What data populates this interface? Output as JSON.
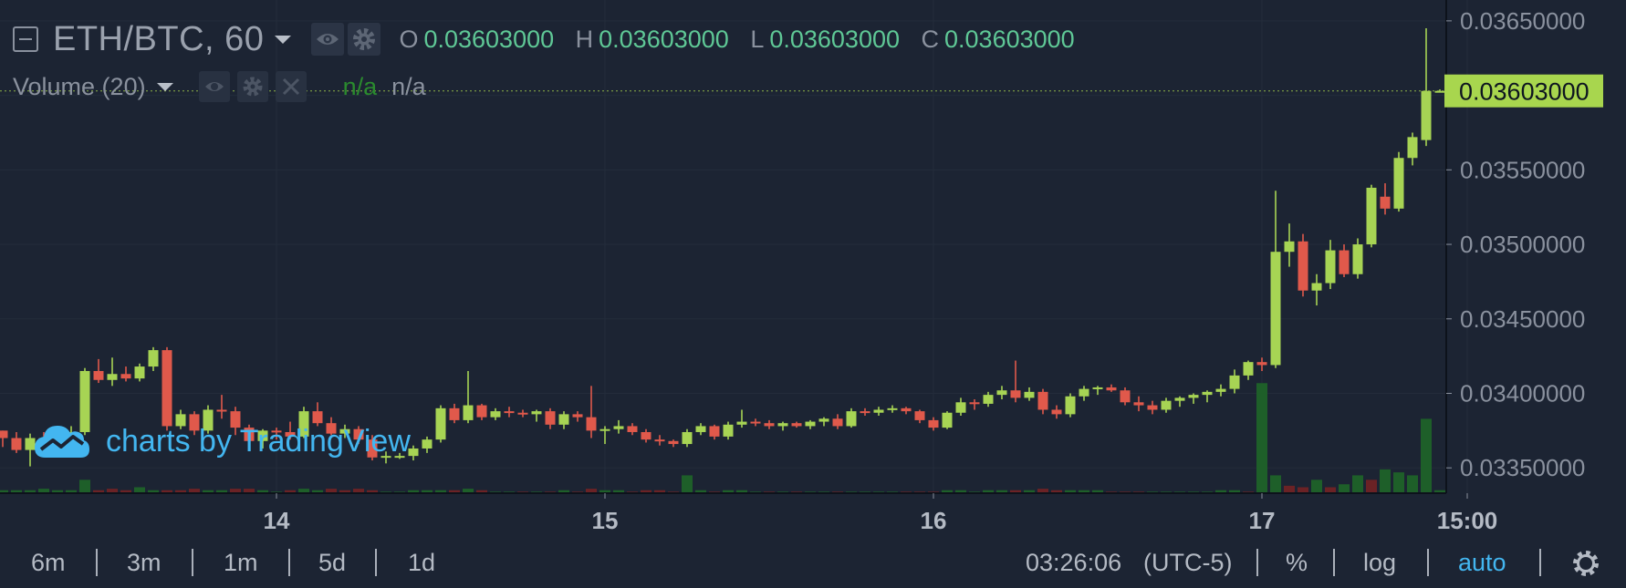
{
  "legend": {
    "symbol": "ETH/BTC, 60",
    "ohlc": [
      {
        "key": "O",
        "value": "0.03603000"
      },
      {
        "key": "H",
        "value": "0.03603000"
      },
      {
        "key": "L",
        "value": "0.03603000"
      },
      {
        "key": "C",
        "value": "0.03603000"
      }
    ]
  },
  "volume_legend": {
    "title": "Volume (20)",
    "value_1": "n/a",
    "value_2": "n/a"
  },
  "watermark": "charts by TradingView",
  "bottom_bar": {
    "ranges": [
      "6m",
      "3m",
      "1m",
      "5d",
      "1d"
    ],
    "time": "03:26:06",
    "timezone": "(UTC-5)",
    "percent": "%",
    "log": "log",
    "auto": "auto"
  },
  "colors": {
    "background": "#1c2433",
    "up": "#a7d454",
    "down": "#e0594b",
    "volume_up": "#1e5f29",
    "volume_down": "#6b2225",
    "price_tag": "#a8d64e",
    "accent": "#43b6f0",
    "ohlc_value": "#5fc896"
  },
  "chart_data": {
    "type": "candlestick",
    "symbol": "ETH/BTC",
    "interval": "60",
    "y_ticks": [
      "0.03350000",
      "0.03400000",
      "0.03450000",
      "0.03500000",
      "0.03550000",
      "0.03600000",
      "0.03650000"
    ],
    "last_price": "0.03603000",
    "y_range": [
      0.03333,
      0.03664
    ],
    "x_labels": [
      {
        "i": 20,
        "label": "14"
      },
      {
        "i": 44,
        "label": "15"
      },
      {
        "i": 68,
        "label": "16"
      },
      {
        "i": 92,
        "label": "17"
      },
      {
        "i": 107,
        "label": "15:00"
      }
    ],
    "candles": [
      [
        0.03375,
        0.03375,
        0.03364,
        0.0337
      ],
      [
        0.0337,
        0.03374,
        0.0336,
        0.03362
      ],
      [
        0.03362,
        0.03373,
        0.03351,
        0.0337
      ],
      [
        0.0337,
        0.03374,
        0.03364,
        0.03366
      ],
      [
        0.03366,
        0.03375,
        0.03362,
        0.03372
      ],
      [
        0.03372,
        0.03378,
        0.03368,
        0.03374
      ],
      [
        0.03374,
        0.03417,
        0.03372,
        0.03415
      ],
      [
        0.03415,
        0.03423,
        0.03407,
        0.03409
      ],
      [
        0.03409,
        0.03424,
        0.03405,
        0.03413
      ],
      [
        0.03413,
        0.03418,
        0.03408,
        0.0341
      ],
      [
        0.0341,
        0.0342,
        0.03408,
        0.03418
      ],
      [
        0.03418,
        0.03431,
        0.03415,
        0.03429
      ],
      [
        0.03429,
        0.03431,
        0.03375,
        0.03378
      ],
      [
        0.03378,
        0.03389,
        0.03376,
        0.03386
      ],
      [
        0.03386,
        0.03388,
        0.03372,
        0.03375
      ],
      [
        0.03375,
        0.03392,
        0.03373,
        0.03389
      ],
      [
        0.03389,
        0.03399,
        0.03383,
        0.03388
      ],
      [
        0.03388,
        0.03391,
        0.03372,
        0.03377
      ],
      [
        0.03377,
        0.03379,
        0.03366,
        0.03368
      ],
      [
        0.03368,
        0.03376,
        0.03363,
        0.03375
      ],
      [
        0.03375,
        0.03377,
        0.03369,
        0.03374
      ],
      [
        0.03374,
        0.03381,
        0.03369,
        0.03371
      ],
      [
        0.03371,
        0.03391,
        0.0337,
        0.03388
      ],
      [
        0.03388,
        0.03394,
        0.03378,
        0.0338
      ],
      [
        0.0338,
        0.03384,
        0.03372,
        0.03373
      ],
      [
        0.03373,
        0.03379,
        0.0337,
        0.03376
      ],
      [
        0.03376,
        0.03378,
        0.03366,
        0.03369
      ],
      [
        0.03369,
        0.03372,
        0.03355,
        0.03357
      ],
      [
        0.03357,
        0.03361,
        0.03353,
        0.03358
      ],
      [
        0.03358,
        0.0336,
        0.03356,
        0.03358
      ],
      [
        0.03358,
        0.03365,
        0.03355,
        0.03363
      ],
      [
        0.03363,
        0.03371,
        0.0336,
        0.03369
      ],
      [
        0.03369,
        0.03392,
        0.03367,
        0.0339
      ],
      [
        0.0339,
        0.03393,
        0.0338,
        0.03382
      ],
      [
        0.03382,
        0.03415,
        0.0338,
        0.03392
      ],
      [
        0.03392,
        0.03393,
        0.03382,
        0.03384
      ],
      [
        0.03384,
        0.0339,
        0.03382,
        0.03388
      ],
      [
        0.03388,
        0.03391,
        0.03384,
        0.03387
      ],
      [
        0.03387,
        0.03389,
        0.03384,
        0.03386
      ],
      [
        0.03386,
        0.03389,
        0.03381,
        0.03388
      ],
      [
        0.03388,
        0.0339,
        0.03376,
        0.03379
      ],
      [
        0.03379,
        0.03388,
        0.03376,
        0.03386
      ],
      [
        0.03386,
        0.03388,
        0.03381,
        0.03384
      ],
      [
        0.03384,
        0.03405,
        0.0337,
        0.03375
      ],
      [
        0.03375,
        0.03378,
        0.03366,
        0.03376
      ],
      [
        0.03376,
        0.03382,
        0.03373,
        0.03378
      ],
      [
        0.03378,
        0.0338,
        0.03372,
        0.03374
      ],
      [
        0.03374,
        0.03376,
        0.03367,
        0.03369
      ],
      [
        0.03369,
        0.03372,
        0.03365,
        0.03368
      ],
      [
        0.03368,
        0.03369,
        0.03364,
        0.03366
      ],
      [
        0.03366,
        0.03376,
        0.03364,
        0.03374
      ],
      [
        0.03374,
        0.0338,
        0.03372,
        0.03378
      ],
      [
        0.03378,
        0.03379,
        0.03369,
        0.03371
      ],
      [
        0.03371,
        0.03381,
        0.03369,
        0.03379
      ],
      [
        0.03379,
        0.03389,
        0.03377,
        0.03381
      ],
      [
        0.03381,
        0.03383,
        0.03378,
        0.0338
      ],
      [
        0.0338,
        0.03382,
        0.03376,
        0.03378
      ],
      [
        0.03378,
        0.03381,
        0.03375,
        0.0338
      ],
      [
        0.0338,
        0.03381,
        0.03377,
        0.03378
      ],
      [
        0.03378,
        0.03382,
        0.03376,
        0.03381
      ],
      [
        0.03381,
        0.03384,
        0.03378,
        0.03383
      ],
      [
        0.03383,
        0.03386,
        0.03376,
        0.03378
      ],
      [
        0.03378,
        0.0339,
        0.03377,
        0.03388
      ],
      [
        0.03388,
        0.0339,
        0.03385,
        0.03387
      ],
      [
        0.03387,
        0.03391,
        0.03385,
        0.03389
      ],
      [
        0.03389,
        0.03392,
        0.03387,
        0.0339
      ],
      [
        0.0339,
        0.03391,
        0.03386,
        0.03388
      ],
      [
        0.03388,
        0.03389,
        0.0338,
        0.03382
      ],
      [
        0.03382,
        0.03384,
        0.03375,
        0.03377
      ],
      [
        0.03377,
        0.03388,
        0.03376,
        0.03387
      ],
      [
        0.03387,
        0.03397,
        0.03385,
        0.03394
      ],
      [
        0.03394,
        0.03396,
        0.03389,
        0.03393
      ],
      [
        0.03393,
        0.03401,
        0.03391,
        0.03399
      ],
      [
        0.03399,
        0.03405,
        0.03396,
        0.03402
      ],
      [
        0.03402,
        0.03422,
        0.03394,
        0.03397
      ],
      [
        0.03397,
        0.03404,
        0.03395,
        0.03401
      ],
      [
        0.03401,
        0.03403,
        0.03386,
        0.03389
      ],
      [
        0.03389,
        0.03392,
        0.03383,
        0.03386
      ],
      [
        0.03386,
        0.034,
        0.03384,
        0.03398
      ],
      [
        0.03398,
        0.03405,
        0.03395,
        0.03403
      ],
      [
        0.03403,
        0.03405,
        0.03399,
        0.03404
      ],
      [
        0.03404,
        0.03406,
        0.03401,
        0.03402
      ],
      [
        0.03402,
        0.03404,
        0.03392,
        0.03394
      ],
      [
        0.03394,
        0.03398,
        0.03388,
        0.03392
      ],
      [
        0.03392,
        0.03395,
        0.03386,
        0.03389
      ],
      [
        0.03389,
        0.03397,
        0.03387,
        0.03395
      ],
      [
        0.03395,
        0.03398,
        0.03391,
        0.03397
      ],
      [
        0.03397,
        0.034,
        0.03393,
        0.03399
      ],
      [
        0.03399,
        0.03402,
        0.03394,
        0.03401
      ],
      [
        0.03401,
        0.03406,
        0.03398,
        0.03403
      ],
      [
        0.03403,
        0.03416,
        0.034,
        0.03412
      ],
      [
        0.03412,
        0.03422,
        0.03409,
        0.03421
      ],
      [
        0.03421,
        0.03424,
        0.03415,
        0.03419
      ],
      [
        0.03419,
        0.03536,
        0.03417,
        0.03495
      ],
      [
        0.03495,
        0.03514,
        0.03485,
        0.03502
      ],
      [
        0.03502,
        0.03507,
        0.03465,
        0.03469
      ],
      [
        0.03469,
        0.0348,
        0.03459,
        0.03474
      ],
      [
        0.03474,
        0.03503,
        0.0347,
        0.03496
      ],
      [
        0.03496,
        0.035,
        0.03478,
        0.0348
      ],
      [
        0.0348,
        0.03504,
        0.03477,
        0.035
      ],
      [
        0.035,
        0.0354,
        0.03498,
        0.03538
      ],
      [
        0.03532,
        0.03541,
        0.0352,
        0.03524
      ],
      [
        0.03524,
        0.03562,
        0.03522,
        0.03558
      ],
      [
        0.03558,
        0.03575,
        0.03553,
        0.03572
      ],
      [
        0.0357,
        0.03645,
        0.03566,
        0.03603
      ],
      [
        0.03603,
        0.03604,
        0.03602,
        0.03603
      ]
    ],
    "volume_max": 76,
    "volume": [
      [
        2,
        1
      ],
      [
        2,
        1
      ],
      [
        2,
        1
      ],
      [
        3,
        1
      ],
      [
        2,
        1
      ],
      [
        2,
        1
      ],
      [
        9,
        1
      ],
      [
        2,
        0
      ],
      [
        3,
        0
      ],
      [
        2,
        0
      ],
      [
        4,
        1
      ],
      [
        2,
        1
      ],
      [
        2,
        0
      ],
      [
        2,
        0
      ],
      [
        3,
        0
      ],
      [
        2,
        1
      ],
      [
        2,
        1
      ],
      [
        3,
        0
      ],
      [
        3,
        0
      ],
      [
        2,
        1
      ],
      [
        1,
        1
      ],
      [
        2,
        0
      ],
      [
        3,
        1
      ],
      [
        2,
        1
      ],
      [
        3,
        0
      ],
      [
        2,
        0
      ],
      [
        3,
        0
      ],
      [
        2,
        0
      ],
      [
        1,
        1
      ],
      [
        1,
        1
      ],
      [
        2,
        1
      ],
      [
        2,
        1
      ],
      [
        2,
        1
      ],
      [
        2,
        0
      ],
      [
        3,
        1
      ],
      [
        2,
        0
      ],
      [
        1,
        1
      ],
      [
        1,
        1
      ],
      [
        1,
        0
      ],
      [
        1,
        1
      ],
      [
        1,
        0
      ],
      [
        2,
        1
      ],
      [
        1,
        0
      ],
      [
        3,
        0
      ],
      [
        2,
        1
      ],
      [
        2,
        1
      ],
      [
        1,
        0
      ],
      [
        2,
        0
      ],
      [
        2,
        0
      ],
      [
        1,
        0
      ],
      [
        12,
        1
      ],
      [
        2,
        1
      ],
      [
        1,
        0
      ],
      [
        2,
        1
      ],
      [
        2,
        1
      ],
      [
        1,
        1
      ],
      [
        1,
        0
      ],
      [
        1,
        1
      ],
      [
        1,
        0
      ],
      [
        1,
        1
      ],
      [
        1,
        1
      ],
      [
        1,
        0
      ],
      [
        1,
        1
      ],
      [
        1,
        1
      ],
      [
        1,
        1
      ],
      [
        1,
        1
      ],
      [
        1,
        0
      ],
      [
        1,
        0
      ],
      [
        1,
        0
      ],
      [
        2,
        1
      ],
      [
        2,
        1
      ],
      [
        1,
        1
      ],
      [
        2,
        1
      ],
      [
        2,
        1
      ],
      [
        2,
        0
      ],
      [
        2,
        1
      ],
      [
        3,
        0
      ],
      [
        2,
        0
      ],
      [
        2,
        1
      ],
      [
        2,
        1
      ],
      [
        2,
        1
      ],
      [
        1,
        0
      ],
      [
        1,
        0
      ],
      [
        1,
        0
      ],
      [
        1,
        1
      ],
      [
        1,
        1
      ],
      [
        1,
        1
      ],
      [
        1,
        1
      ],
      [
        1,
        1
      ],
      [
        2,
        1
      ],
      [
        2,
        1
      ],
      [
        1,
        0
      ],
      [
        74,
        1
      ],
      [
        12,
        1
      ],
      [
        5,
        0
      ],
      [
        4,
        0
      ],
      [
        9,
        1
      ],
      [
        4,
        0
      ],
      [
        6,
        1
      ],
      [
        12,
        1
      ],
      [
        9,
        0
      ],
      [
        16,
        1
      ],
      [
        14,
        1
      ],
      [
        12,
        1
      ],
      [
        50,
        1
      ],
      [
        2,
        1
      ]
    ]
  }
}
